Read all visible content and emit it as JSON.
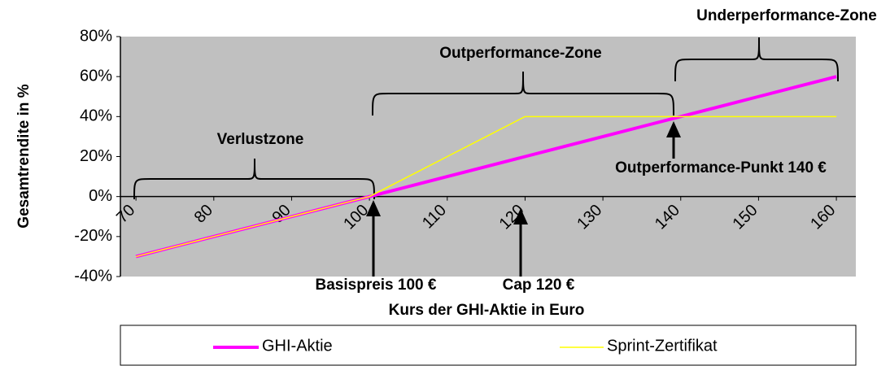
{
  "chart_data": {
    "type": "line",
    "x_label": "Kurs der GHI-Aktie in Euro",
    "y_label": "Gesamtrendite in %",
    "x": [
      70,
      75,
      80,
      85,
      90,
      95,
      100,
      105,
      110,
      115,
      120,
      125,
      130,
      135,
      140,
      145,
      150,
      155,
      160
    ],
    "series": [
      {
        "name": "GHI-Aktie",
        "color": "#ff00ff",
        "values": [
          -30,
          -25,
          -20,
          -15,
          -10,
          -5,
          0,
          5,
          10,
          15,
          20,
          25,
          30,
          35,
          40,
          45,
          50,
          55,
          60
        ]
      },
      {
        "name": "Sprint-Zertifikat",
        "color": "#ffff00",
        "values": [
          -30,
          -25,
          -20,
          -15,
          -10,
          -5,
          0,
          10,
          20,
          30,
          40,
          40,
          40,
          40,
          40,
          40,
          40,
          40,
          40
        ]
      }
    ],
    "xlim": [
      68,
      162.5
    ],
    "xticks": [
      70,
      80,
      90,
      100,
      110,
      120,
      130,
      140,
      150,
      160
    ],
    "ylim": [
      -40,
      80
    ],
    "yticks": [
      {
        "value": -40,
        "label": "-40%"
      },
      {
        "value": -20,
        "label": "-20%"
      },
      {
        "value": 0,
        "label": "0%"
      },
      {
        "value": 20,
        "label": "20%"
      },
      {
        "value": 40,
        "label": "40%"
      },
      {
        "value": 60,
        "label": "60%"
      },
      {
        "value": 80,
        "label": "80%"
      }
    ],
    "grid": false,
    "legend": "bottom",
    "annotations": [
      "Verlustzone",
      "Outperformance-Zone",
      "Underperformance-Zone",
      "Outperformance-Punkt 140 €",
      "Basispreis 100 €",
      "Cap 120 €"
    ]
  }
}
